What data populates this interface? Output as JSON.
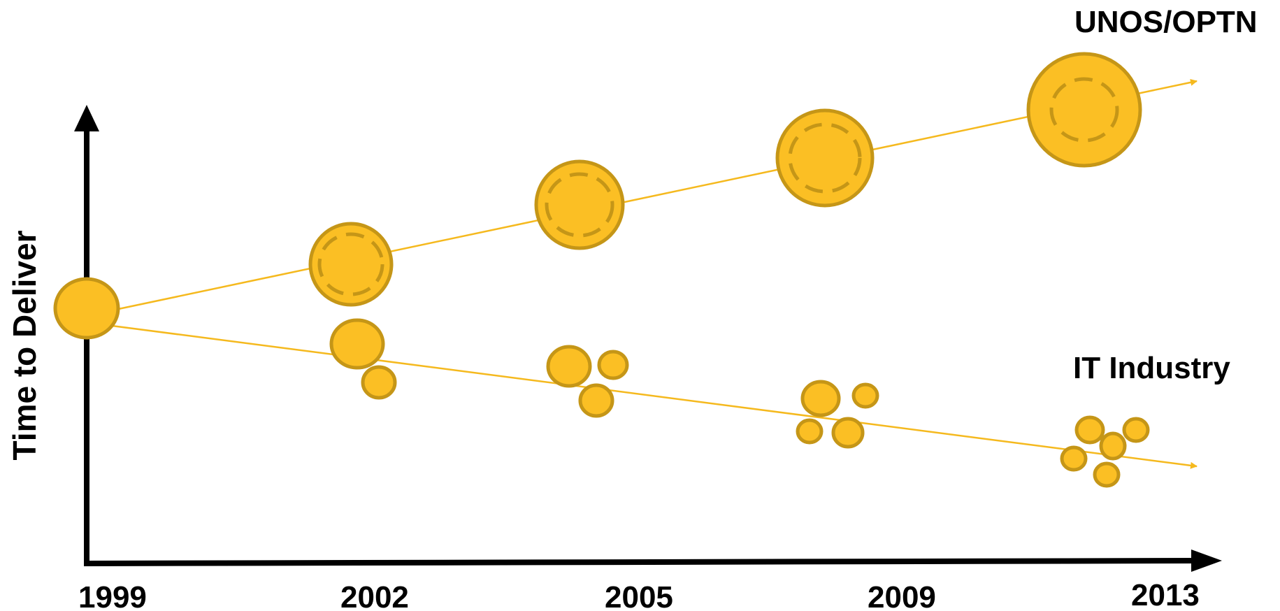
{
  "axis_label": "Time to Deliver",
  "years": [
    "1999",
    "2002",
    "2005",
    "2009",
    "2013"
  ],
  "series": [
    {
      "label": "UNOS/OPTN"
    },
    {
      "label": "IT Industry"
    }
  ],
  "colors": {
    "coin_fill": "#FBBF24",
    "coin_stroke": "#C59617",
    "trend_line": "#F5B91E",
    "axis": "#000000"
  }
}
